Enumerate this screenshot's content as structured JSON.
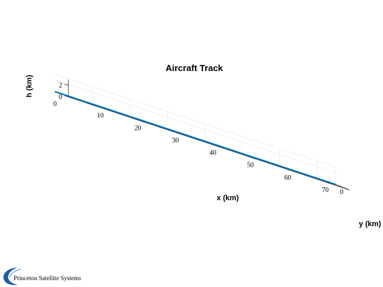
{
  "chart_data": {
    "type": "line",
    "title": "Aircraft Track",
    "xlabel": "x (km)",
    "ylabel": "y (km)",
    "zlabel": "h (km)",
    "x_ticks": [
      10,
      20,
      30,
      40,
      50,
      60,
      70
    ],
    "y_ticks": [
      0
    ],
    "z_ticks": [
      0,
      2
    ],
    "xlim": [
      0,
      75
    ],
    "ylim": [
      0,
      1
    ],
    "zlim": [
      0,
      3
    ],
    "grid": true,
    "series": [
      {
        "color": "#0072BD",
        "x": [
          0,
          75
        ],
        "y": [
          0,
          0
        ],
        "z": [
          0,
          0
        ]
      }
    ]
  },
  "logo": {
    "text": "Princeton Satellite Systems",
    "color": "#1f5ea8"
  }
}
